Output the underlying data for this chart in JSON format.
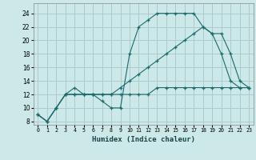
{
  "xlabel": "Humidex (Indice chaleur)",
  "bg_color": "#cce8e8",
  "grid_color": "#aacccc",
  "line_color": "#1a6b6b",
  "xlim": [
    -0.5,
    23.5
  ],
  "ylim": [
    7.5,
    25.5
  ],
  "xticks": [
    0,
    1,
    2,
    3,
    4,
    5,
    6,
    7,
    8,
    9,
    10,
    11,
    12,
    13,
    14,
    15,
    16,
    17,
    18,
    19,
    20,
    21,
    22,
    23
  ],
  "yticks": [
    8,
    10,
    12,
    14,
    16,
    18,
    20,
    22,
    24
  ],
  "line1_x": [
    0,
    1,
    2,
    3,
    4,
    5,
    6,
    7,
    8,
    9,
    10,
    11,
    12,
    13,
    14,
    15,
    16,
    17,
    18,
    19,
    20,
    21,
    22,
    23
  ],
  "line1_y": [
    9,
    8,
    10,
    12,
    12,
    12,
    12,
    11,
    10,
    10,
    18,
    22,
    23,
    24,
    24,
    24,
    24,
    24,
    22,
    21,
    18,
    14,
    13,
    13
  ],
  "line2_x": [
    0,
    1,
    2,
    3,
    4,
    5,
    6,
    7,
    8,
    9,
    10,
    11,
    12,
    13,
    14,
    15,
    16,
    17,
    18,
    19,
    20,
    21,
    22,
    23
  ],
  "line2_y": [
    9,
    8,
    10,
    12,
    12,
    12,
    12,
    12,
    12,
    12,
    12,
    12,
    12,
    13,
    13,
    13,
    13,
    13,
    13,
    13,
    13,
    13,
    13,
    13
  ],
  "line3_x": [
    0,
    1,
    2,
    3,
    4,
    5,
    6,
    7,
    8,
    9,
    10,
    11,
    12,
    13,
    14,
    15,
    16,
    17,
    18,
    19,
    20,
    21,
    22,
    23
  ],
  "line3_y": [
    9,
    8,
    10,
    12,
    13,
    12,
    12,
    12,
    12,
    13,
    14,
    15,
    16,
    17,
    18,
    19,
    20,
    21,
    22,
    21,
    21,
    18,
    14,
    13
  ]
}
